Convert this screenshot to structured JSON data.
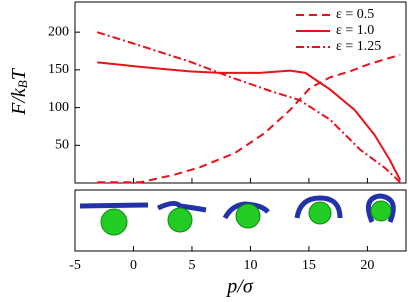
{
  "chart_data": {
    "type": "line",
    "x_label": "p/σ",
    "y_label_parts": [
      "F/k",
      "B",
      "T"
    ],
    "xlim": [
      -5,
      23.3
    ],
    "xticks": [
      -5,
      0,
      5,
      10,
      15,
      20
    ],
    "ylim": [
      0,
      240
    ],
    "yticks": [
      50,
      100,
      150,
      200
    ],
    "legend": "upper right",
    "series": [
      {
        "name": "ε = 0.5",
        "color": "#e8131a",
        "style": "dashed",
        "x": [
          -3.1,
          0.6,
          3.5,
          5.7,
          8.7,
          11.2,
          13.4,
          15.1,
          16.8,
          18.5,
          20.2,
          22.8
        ],
        "values": [
          1,
          1,
          11,
          21,
          40,
          66,
          97,
          126,
          140,
          148,
          158,
          170
        ]
      },
      {
        "name": "ε = 1.0",
        "color": "#e8131a",
        "style": "solid",
        "x": [
          -3.1,
          0.6,
          4.8,
          7.4,
          10.8,
          13.4,
          14.7,
          16.8,
          18.9,
          20.6,
          21.9,
          22.8
        ],
        "values": [
          160,
          154,
          148,
          146,
          146,
          149,
          146,
          124,
          97,
          64,
          31,
          4
        ]
      },
      {
        "name": "ε = 1.25",
        "color": "#e8131a",
        "style": "dashdot",
        "x": [
          -3.1,
          0.6,
          4.8,
          8.2,
          11.7,
          14.2,
          16.8,
          19.4,
          21.5,
          22.8
        ],
        "values": [
          200,
          182,
          161,
          141,
          122,
          110,
          84,
          44,
          20,
          1
        ]
      }
    ]
  }
}
